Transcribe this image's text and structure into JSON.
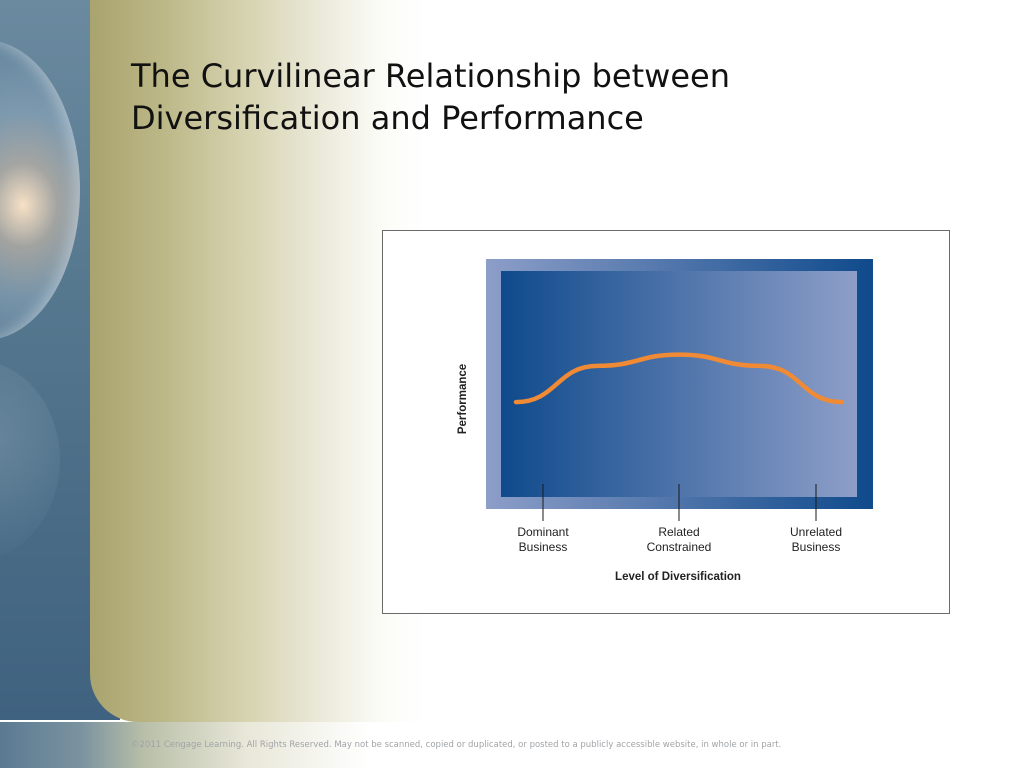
{
  "slide": {
    "title_line1": "The Curvilinear Relationship between",
    "title_line2": "Diversification and Performance",
    "copyright": "©2011 Cengage Learning. All Rights Reserved. May not be scanned, copied or duplicated, or posted to a publicly accessible website, in whole or in part."
  },
  "chart_data": {
    "type": "line",
    "title": "",
    "xlabel": "Level of Diversification",
    "ylabel": "Performance",
    "categories": [
      "Dominant\nBusiness",
      "Related\nConstrained",
      "Unrelated\nBusiness"
    ],
    "y_tick_labels": false,
    "curve": {
      "shape": "inverted-u",
      "x": [
        0,
        0.25,
        0.5,
        0.75,
        1.0
      ],
      "y": [
        0.42,
        0.58,
        0.63,
        0.58,
        0.42
      ],
      "color": "#f08a34"
    },
    "colors": {
      "panel_dark": "#0f4a8c",
      "panel_light": "#8d9ec8",
      "curve": "#f08a34"
    }
  }
}
